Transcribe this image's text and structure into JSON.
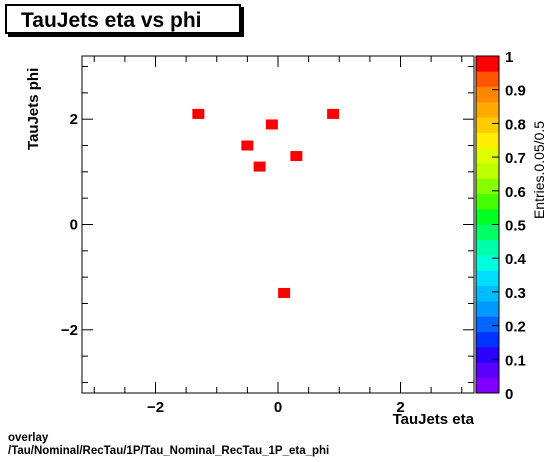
{
  "chart_data": {
    "type": "scatter",
    "title": "TauJets eta vs phi",
    "xlabel": "TauJets eta",
    "ylabel": "TauJets phi",
    "xlim": [
      -3.2,
      3.2
    ],
    "ylim": [
      -3.2,
      3.2
    ],
    "x_ticks": [
      -2,
      0,
      2
    ],
    "y_ticks": [
      -2,
      0,
      2
    ],
    "x_tick_labels": [
      "−2",
      "0",
      "2"
    ],
    "y_tick_labels": [
      "−2",
      "0",
      "2"
    ],
    "points": [
      {
        "x": -1.3,
        "y": 2.1
      },
      {
        "x": -0.1,
        "y": 1.9
      },
      {
        "x": 0.9,
        "y": 2.1
      },
      {
        "x": -0.5,
        "y": 1.5
      },
      {
        "x": 0.3,
        "y": 1.3
      },
      {
        "x": -0.3,
        "y": 1.1
      },
      {
        "x": 0.1,
        "y": -1.3
      }
    ],
    "point_color": "#ff0000",
    "colorbar": {
      "label": "Entries.0.05/0.5",
      "range": [
        0,
        1
      ],
      "ticks": [
        0,
        0.1,
        0.2,
        0.3,
        0.4,
        0.5,
        0.6,
        0.7,
        0.8,
        0.9,
        1
      ],
      "tick_labels": [
        "0",
        "0.1",
        "0.2",
        "0.3",
        "0.4",
        "0.5",
        "0.6",
        "0.7",
        "0.8",
        "0.9",
        "1"
      ]
    },
    "grid": false,
    "legend": "none"
  },
  "footer": {
    "line1": "overlay",
    "line2": "/Tau/Nominal/RecTau/1P/Tau_Nominal_RecTau_1P_eta_phi"
  }
}
